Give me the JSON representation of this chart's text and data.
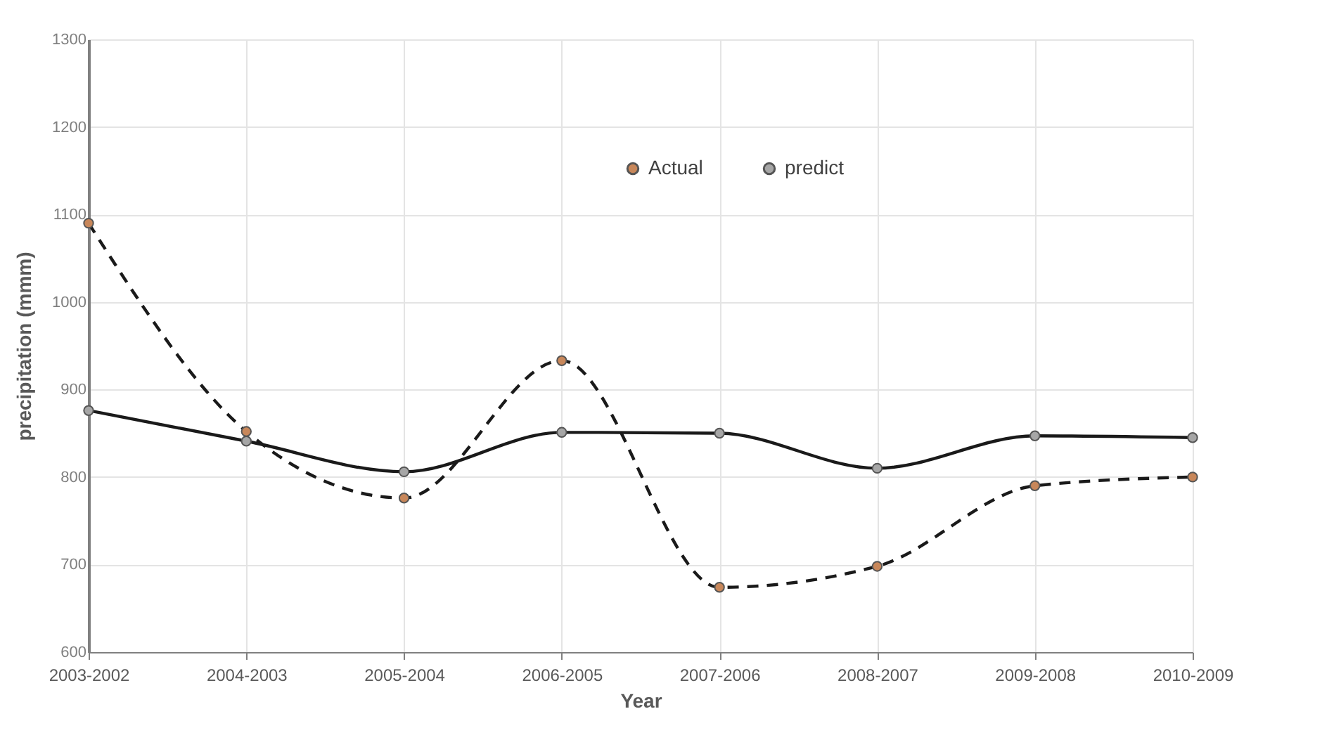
{
  "chart_data": {
    "type": "line",
    "xlabel": "Year",
    "ylabel": "precipitation (mmm)",
    "categories": [
      "2003-2002",
      "2004-2003",
      "2005-2004",
      "2006-2005",
      "2007-2006",
      "2008-2007",
      "2009-2008",
      "2010-2009"
    ],
    "series": [
      {
        "name": "Actual",
        "color": "#c8875a",
        "line_style": "dashed",
        "values": [
          1090,
          852,
          776,
          933,
          674,
          698,
          790,
          800
        ]
      },
      {
        "name": "predict",
        "color": "#a6a6a6",
        "line_style": "solid",
        "values": [
          876,
          841,
          806,
          851,
          850,
          810,
          847,
          845
        ]
      }
    ],
    "ylim": [
      600,
      1300
    ],
    "yticks": [
      600,
      700,
      800,
      900,
      1000,
      1100,
      1200,
      1300
    ],
    "grid": true,
    "legend": "top",
    "marker": "circle"
  }
}
